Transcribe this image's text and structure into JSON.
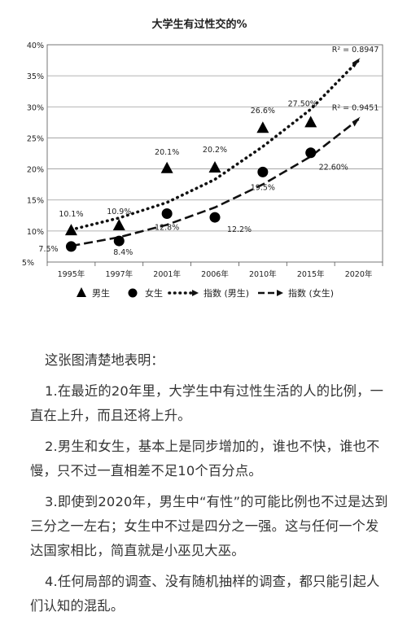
{
  "chart_data": {
    "type": "scatter",
    "title": "大学生有过性交的%",
    "categories": [
      "1995年",
      "1997年",
      "2001年",
      "2006年",
      "2010年",
      "2015年",
      "2020年"
    ],
    "ylim": [
      5,
      40
    ],
    "y_ticks": [
      "5%",
      "10%",
      "15%",
      "20%",
      "25%",
      "30%",
      "35%",
      "40%"
    ],
    "grid": "horizontal",
    "series": [
      {
        "name": "男生",
        "marker": "triangle",
        "color": "#000000",
        "values": [
          10.1,
          10.9,
          20.1,
          20.2,
          26.6,
          27.5,
          null
        ],
        "labels": [
          "10.1%",
          "10.9%",
          "20.1%",
          "20.2%",
          "26.6%",
          "27.50%",
          ""
        ]
      },
      {
        "name": "女生",
        "marker": "circle",
        "color": "#000000",
        "values": [
          7.5,
          8.4,
          12.8,
          12.2,
          19.5,
          22.6,
          null
        ],
        "labels": [
          "7.5%",
          "8.4%",
          "12.8%",
          "12.2%",
          "19.5%",
          "22.60%",
          ""
        ]
      }
    ],
    "trendlines": [
      {
        "name": "指数 (男生)",
        "style": "dotted",
        "r2": "R² = 0.8947",
        "values": [
          10.2,
          12.1,
          14.6,
          18.3,
          23.6,
          29.6,
          37.5
        ]
      },
      {
        "name": "指数 (女生)",
        "style": "dashed",
        "r2": "R² = 0.9451",
        "values": [
          7.6,
          9.0,
          11.0,
          13.8,
          17.5,
          22.0,
          28.0
        ]
      }
    ],
    "legend_position": "bottom"
  },
  "article": {
    "intro": "这张图清楚地表明：",
    "points": [
      "1.在最近的20年里，大学生中有过性生活的人的比例，一直在上升，而且还将上升。",
      "2.男生和女生，基本上是同步增加的，谁也不快，谁也不慢，只不过一直相差不足10个百分点。",
      "3.即使到2020年，男生中“有性”的可能比例也不过是达到三分之一左右；女生中不过是四分之一强。这与任何一个发达国家相比，简直就是小巫见大巫。",
      "4.任何局部的调查、没有随机抽样的调查，都只能引起人们认知的混乱。"
    ]
  }
}
